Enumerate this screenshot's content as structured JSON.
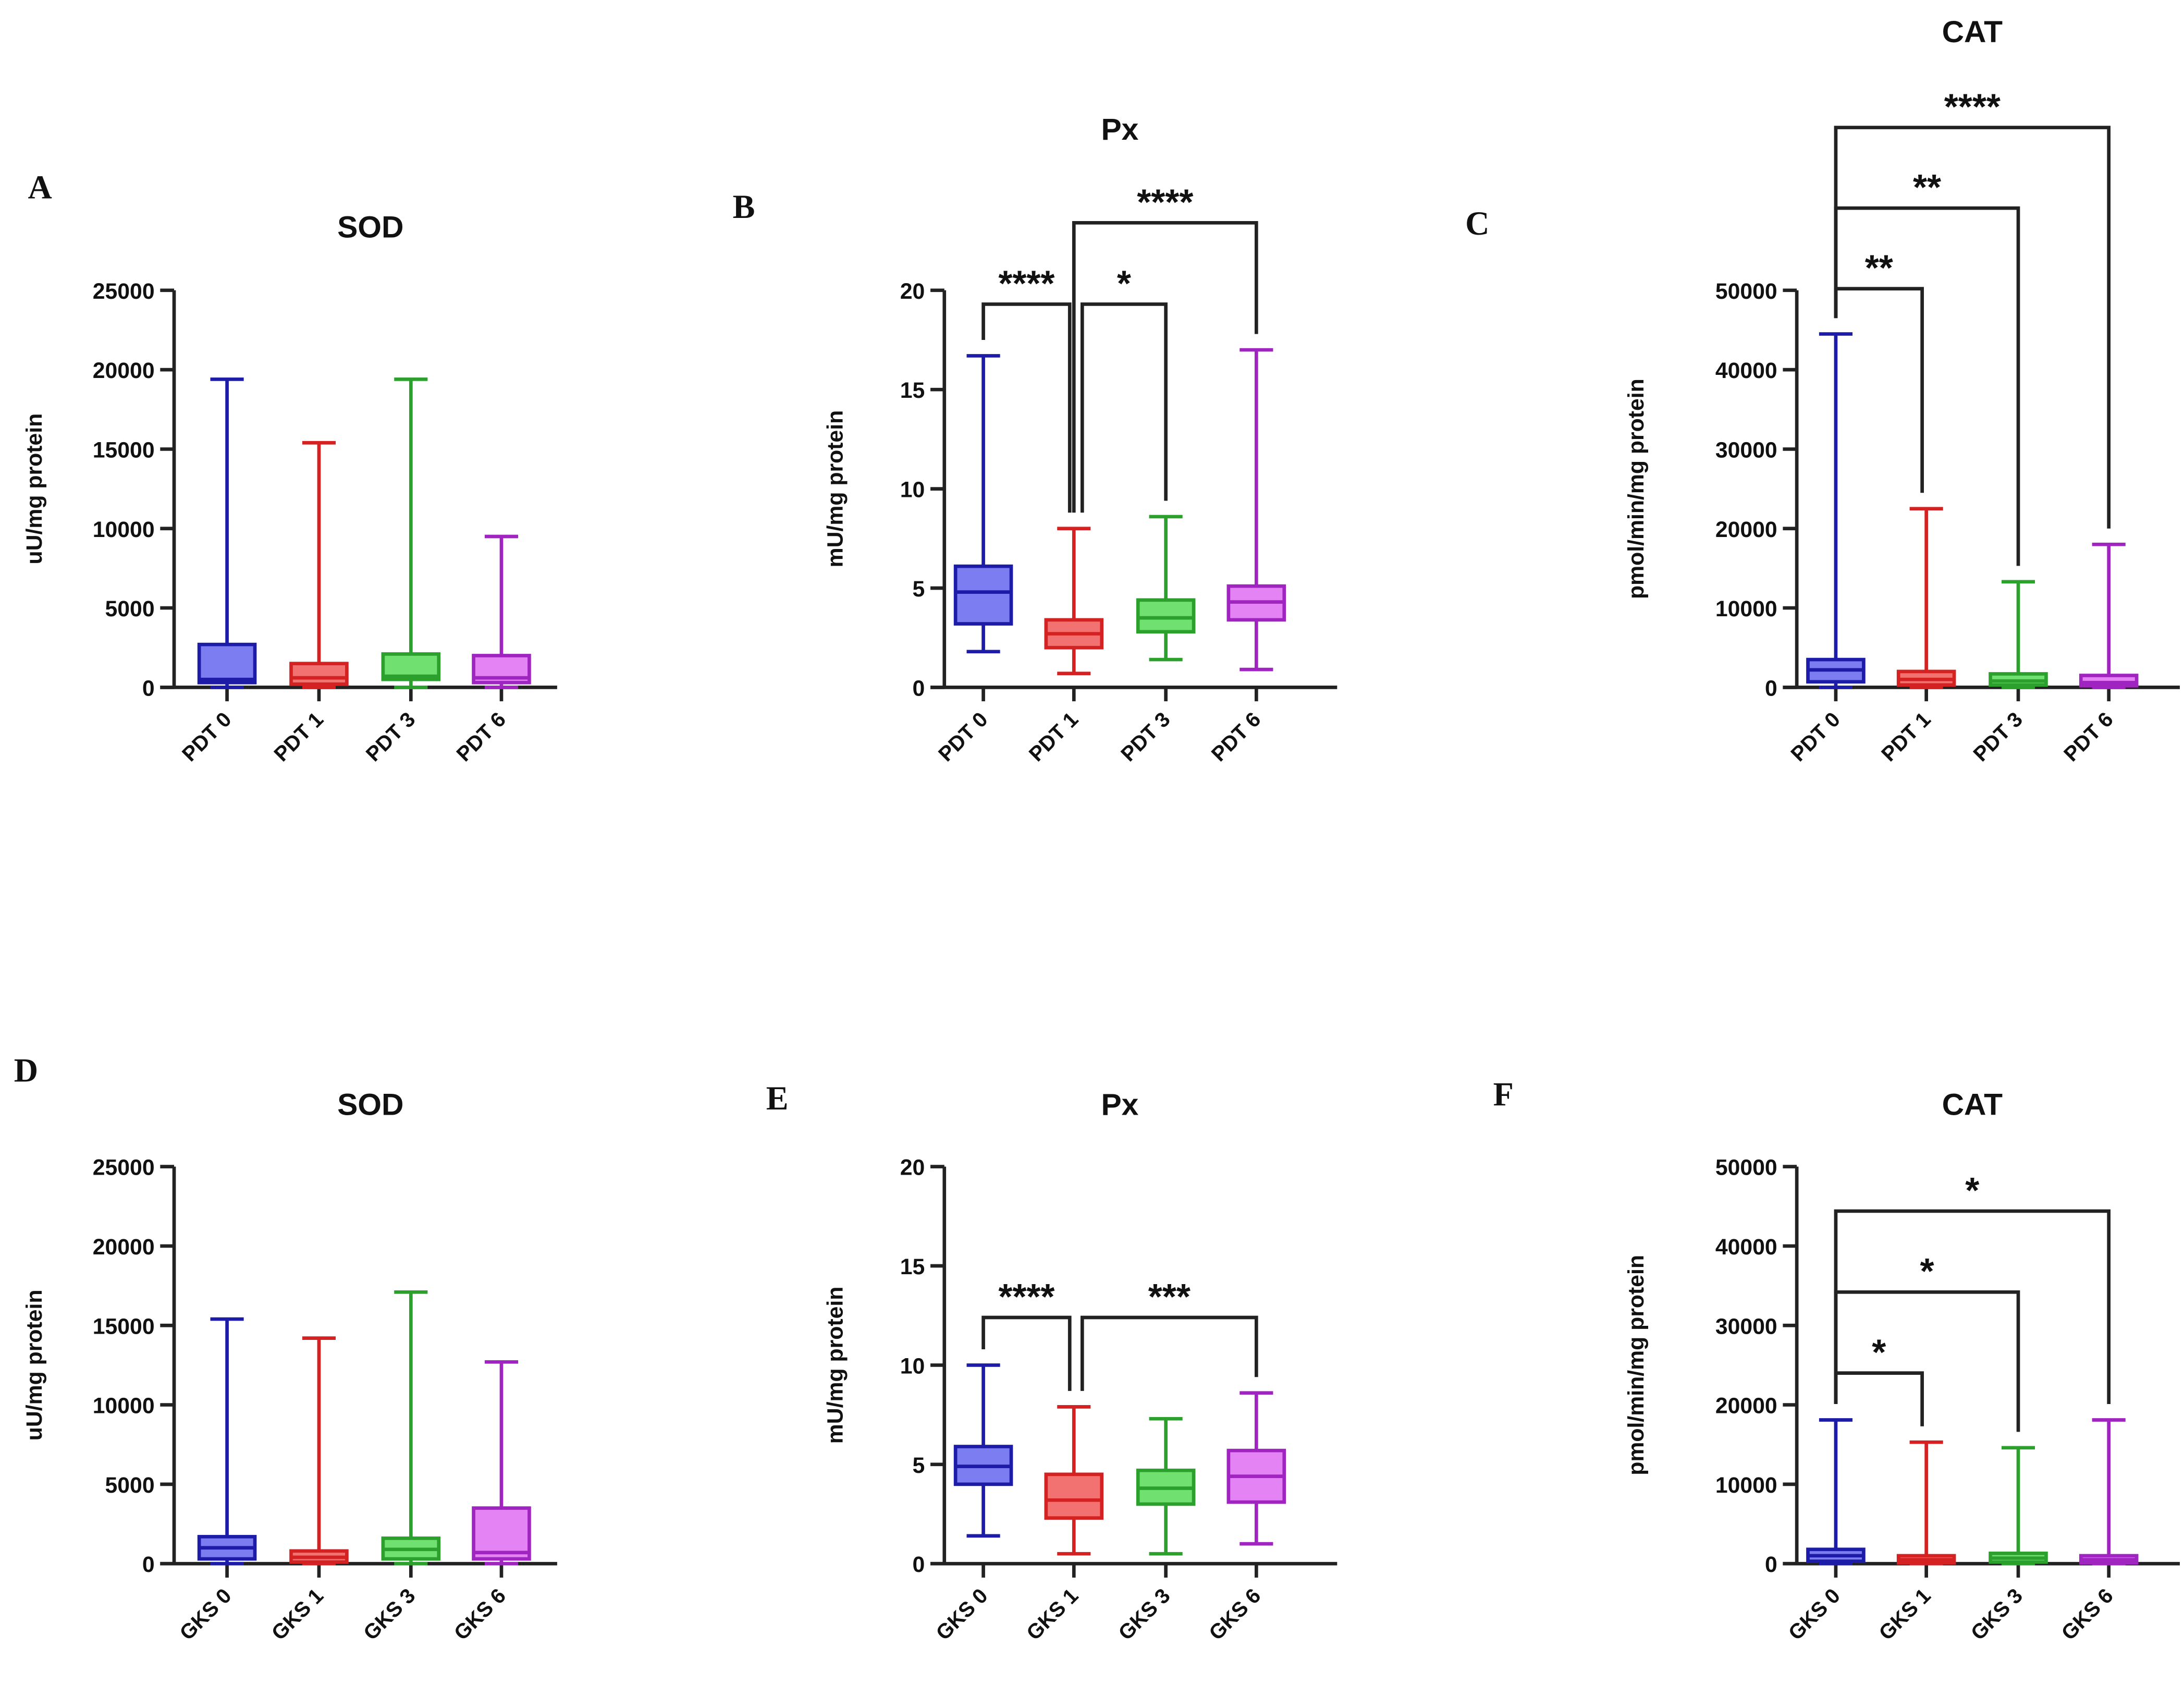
{
  "colors": {
    "series": [
      {
        "stroke": "#1c1ca8",
        "fill": "#7d7df2"
      },
      {
        "stroke": "#d42222",
        "fill": "#f27272"
      },
      {
        "stroke": "#2ca02c",
        "fill": "#70e070"
      },
      {
        "stroke": "#a024c0",
        "fill": "#e484f4"
      }
    ],
    "axis": "#222222"
  },
  "chart_data": [
    {
      "panel": "A",
      "type": "box",
      "title": "SOD",
      "ylabel": "uU/mg protein",
      "ylim": [
        0,
        25000
      ],
      "yticks": [
        "0",
        "5000",
        "10000",
        "15000",
        "20000",
        "25000"
      ],
      "ytick_values": [
        0,
        5000,
        10000,
        15000,
        20000,
        25000
      ],
      "categories": [
        "PDT 0",
        "PDT 1",
        "PDT 3",
        "PDT 6"
      ],
      "boxes": [
        [
          0,
          300,
          500,
          2700,
          19400
        ],
        [
          0,
          200,
          600,
          1500,
          15400
        ],
        [
          0,
          500,
          700,
          2100,
          19400
        ],
        [
          0,
          300,
          600,
          2000,
          9500
        ]
      ],
      "significance": []
    },
    {
      "panel": "B",
      "type": "box",
      "title": "Px",
      "ylabel": "mU/mg protein",
      "ylim": [
        0,
        20
      ],
      "yticks": [
        "0",
        "5",
        "10",
        "15",
        "20"
      ],
      "ytick_values": [
        0,
        5,
        10,
        15,
        20
      ],
      "categories": [
        "PDT 0",
        "PDT 1",
        "PDT 3",
        "PDT 6"
      ],
      "boxes": [
        [
          1.8,
          3.2,
          4.8,
          6.1,
          16.7
        ],
        [
          0.7,
          2.0,
          2.7,
          3.4,
          8.0
        ],
        [
          1.4,
          2.8,
          3.5,
          4.4,
          8.6
        ],
        [
          0.9,
          3.4,
          4.3,
          5.1,
          17.0
        ]
      ],
      "significance": [
        {
          "from": 0,
          "to": 1,
          "label": "****",
          "y": 19.3
        },
        {
          "from": 1,
          "to": 2,
          "label": "*",
          "y": 19.3
        },
        {
          "from": 1,
          "to": 3,
          "label": "****",
          "y": 23.4
        }
      ]
    },
    {
      "panel": "C",
      "type": "box",
      "title": "CAT",
      "ylabel": "pmol/min/mg protein",
      "ylim": [
        0,
        50000
      ],
      "yticks": [
        "0",
        "10000",
        "20000",
        "30000",
        "40000",
        "50000"
      ],
      "ytick_values": [
        0,
        10000,
        20000,
        30000,
        40000,
        50000
      ],
      "categories": [
        "PDT 0",
        "PDT 1",
        "PDT 3",
        "PDT 6"
      ],
      "boxes": [
        [
          0,
          700,
          2200,
          3500,
          44500
        ],
        [
          0,
          300,
          1000,
          2000,
          22500
        ],
        [
          0,
          300,
          800,
          1700,
          13300
        ],
        [
          0,
          200,
          600,
          1500,
          18000
        ]
      ],
      "significance": [
        {
          "from": 0,
          "to": 1,
          "label": "**",
          "y": 50200
        },
        {
          "from": 0,
          "to": 2,
          "label": "**",
          "y": 60350
        },
        {
          "from": 0,
          "to": 3,
          "label": "****",
          "y": 70500
        }
      ]
    },
    {
      "panel": "D",
      "type": "box",
      "title": "SOD",
      "ylabel": "uU/mg protein",
      "ylim": [
        0,
        25000
      ],
      "yticks": [
        "0",
        "5000",
        "10000",
        "15000",
        "20000",
        "25000"
      ],
      "ytick_values": [
        0,
        5000,
        10000,
        15000,
        20000,
        25000
      ],
      "categories": [
        "GKS 0",
        "GKS 1",
        "GKS 3",
        "GKS 6"
      ],
      "boxes": [
        [
          0,
          300,
          1000,
          1700,
          15400
        ],
        [
          0,
          100,
          400,
          800,
          14200
        ],
        [
          0,
          300,
          900,
          1600,
          17100
        ],
        [
          0,
          300,
          700,
          3500,
          12700
        ]
      ],
      "significance": []
    },
    {
      "panel": "E",
      "type": "box",
      "title": "Px",
      "ylabel": "mU/mg protein",
      "ylim": [
        0,
        20
      ],
      "yticks": [
        "0",
        "5",
        "10",
        "15",
        "20"
      ],
      "ytick_values": [
        0,
        5,
        10,
        15,
        20
      ],
      "categories": [
        "GKS 0",
        "GKS 1",
        "GKS 3",
        "GKS 6"
      ],
      "boxes": [
        [
          1.4,
          4.0,
          4.9,
          5.9,
          10.0
        ],
        [
          0.5,
          2.3,
          3.2,
          4.5,
          7.9
        ],
        [
          0.5,
          3.0,
          3.8,
          4.7,
          7.3
        ],
        [
          1.0,
          3.1,
          4.4,
          5.7,
          8.6
        ]
      ],
      "significance": [
        {
          "from": 0,
          "to": 1,
          "label": "****",
          "y": 12.4
        },
        {
          "from": 1,
          "to": 3,
          "label": "***",
          "y": 12.4
        }
      ]
    },
    {
      "panel": "F",
      "type": "box",
      "title": "CAT",
      "ylabel": "pmol/min/mg protein",
      "ylim": [
        0,
        50000
      ],
      "yticks": [
        "0",
        "10000",
        "20000",
        "30000",
        "40000",
        "50000"
      ],
      "ytick_values": [
        0,
        10000,
        20000,
        30000,
        40000,
        50000
      ],
      "categories": [
        "GKS 0",
        "GKS 1",
        "GKS 3",
        "GKS 6"
      ],
      "boxes": [
        [
          0,
          300,
          1000,
          1800,
          18100
        ],
        [
          0,
          100,
          500,
          1000,
          15300
        ],
        [
          0,
          200,
          700,
          1300,
          14600
        ],
        [
          0,
          100,
          500,
          1000,
          18100
        ]
      ],
      "significance": [
        {
          "from": 0,
          "to": 1,
          "label": "*",
          "y": 24000
        },
        {
          "from": 0,
          "to": 2,
          "label": "*",
          "y": 34200
        },
        {
          "from": 0,
          "to": 3,
          "label": "*",
          "y": 44400
        }
      ]
    }
  ]
}
